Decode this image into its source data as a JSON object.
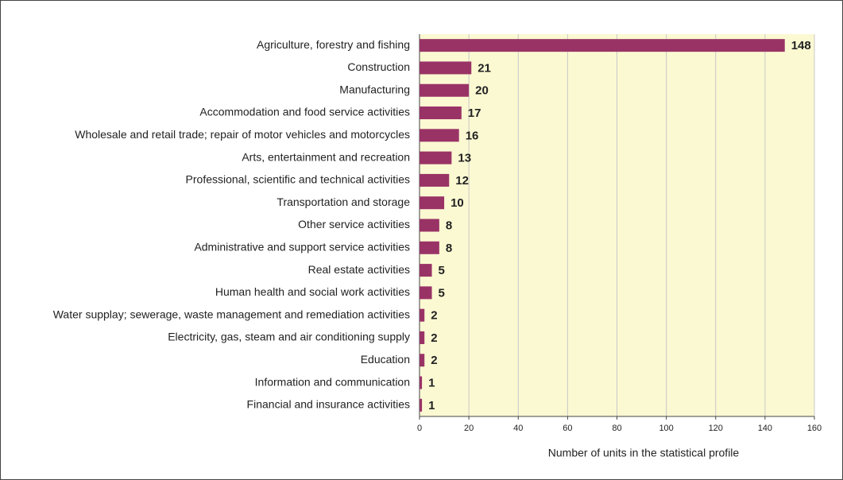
{
  "chart_data": {
    "type": "bar",
    "orientation": "horizontal",
    "x_label": "Number of units in the statistical profile",
    "categories": [
      "Agriculture, forestry and fishing",
      "Construction",
      "Manufacturing",
      "Accommodation and food service activities",
      "Wholesale and retail trade; repair of motor vehicles and motorcycles",
      "Arts, entertainment and recreation",
      "Professional, scientific and technical activities",
      "Transportation and storage",
      "Other service activities",
      "Administrative and support service activities",
      "Real estate activities",
      "Human health and social work activities",
      "Water supplay; sewerage, waste management and remediation activities",
      "Electricity, gas, steam and air conditioning supply",
      "Education",
      "Information and communication",
      "Financial and insurance activities"
    ],
    "values": [
      148,
      21,
      20,
      17,
      16,
      13,
      12,
      10,
      8,
      8,
      5,
      5,
      2,
      2,
      2,
      1,
      1
    ],
    "color": "#993366",
    "plot_background": "#fbf9d2",
    "xlim": [
      0,
      160
    ],
    "xticks": [
      0,
      20,
      40,
      60,
      80,
      100,
      120,
      140,
      160
    ],
    "grid": true
  }
}
